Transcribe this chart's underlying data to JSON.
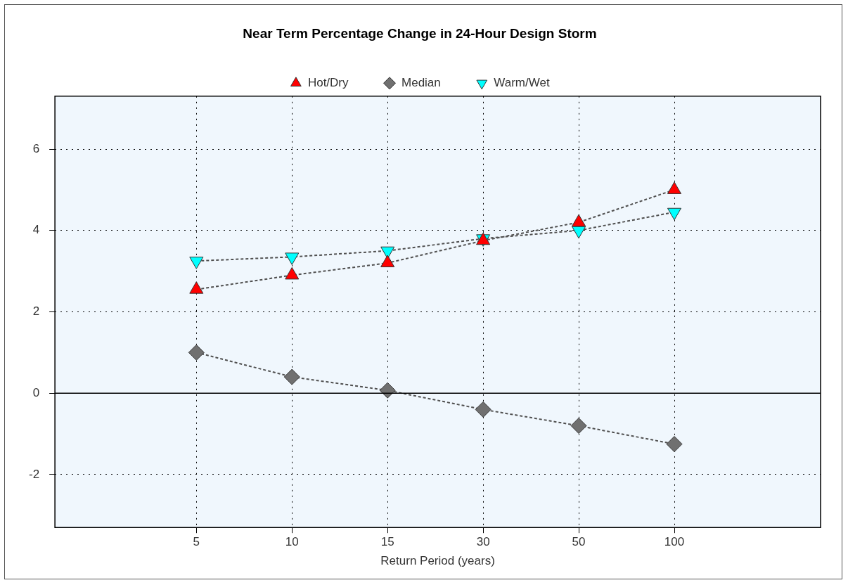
{
  "chart_data": {
    "type": "line",
    "title": "Near Term Percentage Change in 24-Hour Design Storm",
    "xlabel": "Return Period (years)",
    "categories": [
      "5",
      "10",
      "15",
      "30",
      "50",
      "100"
    ],
    "series": [
      {
        "name": "Hot/Dry",
        "color": "#ff0000",
        "marker": "triangle",
        "values": [
          2.55,
          2.9,
          3.2,
          3.75,
          4.2,
          5.0
        ]
      },
      {
        "name": "Median",
        "color": "#707070",
        "marker": "diamond",
        "values": [
          1.0,
          0.4,
          0.07,
          -0.4,
          -0.8,
          -1.25
        ]
      },
      {
        "name": "Warm/Wet",
        "color": "#00ffff",
        "marker": "triangle-down",
        "values": [
          3.25,
          3.35,
          3.5,
          3.8,
          4.0,
          4.45
        ]
      }
    ],
    "ylim": [
      -3.3,
      7.3
    ],
    "yticks": [
      -2,
      0,
      2,
      4,
      6
    ],
    "grid": true,
    "legend": "top",
    "line_style": "dashed",
    "ref_lines": [
      {
        "axis": "y",
        "value": 0
      }
    ]
  }
}
